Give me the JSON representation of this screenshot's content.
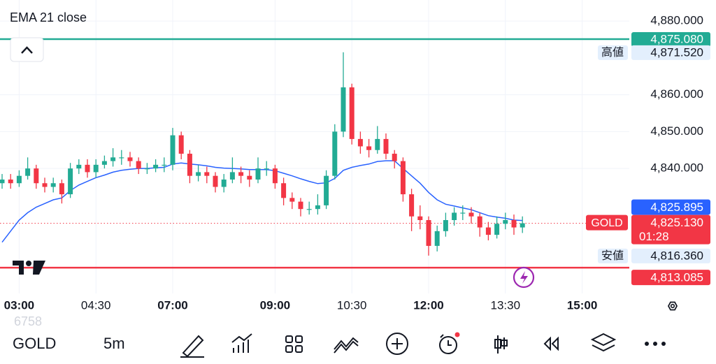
{
  "chart_data": {
    "type": "candlestick",
    "up_color": "#22ab94",
    "down_color": "#f23645",
    "categories": [
      null,
      null,
      "03:00",
      null,
      null,
      null,
      null,
      null,
      null,
      null,
      null,
      "04:30",
      null,
      null,
      null,
      null,
      null,
      null,
      null,
      null,
      "07:00",
      null,
      null,
      null,
      null,
      null,
      null,
      null,
      null,
      null,
      null,
      null,
      "09:00",
      null,
      null,
      null,
      null,
      null,
      null,
      null,
      null,
      "10:30",
      null,
      null,
      null,
      null,
      null,
      null,
      null,
      null,
      "12:00",
      null,
      null,
      null,
      null,
      null,
      null,
      null,
      null,
      "13:30",
      null,
      null,
      null,
      null,
      null,
      null,
      null,
      null,
      "15:00"
    ],
    "open": [
      4836,
      4837,
      4836,
      4838,
      4840,
      4836,
      4835,
      4836,
      4833,
      4840,
      4841,
      4839,
      4841,
      4842,
      4843,
      4843,
      4842,
      4840,
      4840,
      4841,
      4841,
      4849,
      4844,
      4838,
      4839,
      4838,
      4835,
      4837,
      4839,
      4838,
      4837,
      4840,
      4840,
      4836,
      4832,
      4831,
      4829,
      4829,
      4830,
      4838,
      4850,
      4862,
      4848,
      4846,
      4845,
      4848,
      4844,
      4842,
      4833,
      4827,
      4826,
      4819,
      4823,
      4826,
      4828,
      4828,
      4827,
      4824,
      4822,
      4825,
      4826,
      4824,
      null,
      null,
      null,
      null,
      null,
      null,
      null
    ],
    "high": [
      4838.5,
      4838.5,
      4839.5,
      4843,
      4841,
      4837.5,
      4837.5,
      4837,
      4841.5,
      4842.5,
      4842.5,
      4842.5,
      4843.5,
      4845.5,
      4845,
      4844.5,
      4843,
      4841.5,
      4842.5,
      4843,
      4851,
      4850,
      4845,
      4841,
      4840.5,
      4839,
      4838.5,
      4843,
      4840.5,
      4839.5,
      4843,
      4842,
      4841,
      4837.5,
      4833.5,
      4832,
      4831,
      4833,
      4839.5,
      4852,
      4871.52,
      4863,
      4850,
      4848,
      4851.5,
      4849.5,
      4845,
      4843,
      4834.5,
      4830,
      4827,
      4824.5,
      4828,
      4829.5,
      4830,
      4829.5,
      4828,
      4825.5,
      4827,
      4828,
      4827.5,
      4827,
      null,
      null,
      null,
      null,
      null,
      null,
      null
    ],
    "low": [
      4834.5,
      4834.5,
      4835,
      4837,
      4834.5,
      4833.5,
      4833.5,
      4830.5,
      4832,
      4838.5,
      4837.5,
      4837.5,
      4840,
      4840.5,
      4841,
      4840.5,
      4838.5,
      4838.5,
      4839,
      4839,
      4839.5,
      4842.5,
      4836,
      4836.5,
      4836,
      4833.5,
      4833.5,
      4836,
      4836,
      4835,
      4836,
      4838,
      4834.5,
      4830,
      4829,
      4827,
      4827.5,
      4827.5,
      4829,
      4837,
      4848.5,
      4846.5,
      4844,
      4843,
      4844,
      4842.5,
      4840,
      4831,
      4823,
      4823.5,
      4816.36,
      4817.5,
      4821.5,
      4824.5,
      4826,
      4825,
      4821.5,
      4820.5,
      4821,
      4823.5,
      4822,
      4822.5,
      null,
      null,
      null,
      null,
      null,
      null,
      null
    ],
    "close": [
      4837,
      4836,
      4838,
      4840,
      4836,
      4835,
      4836,
      4833,
      4840,
      4841,
      4839,
      4841,
      4842,
      4843,
      4843,
      4842,
      4840,
      4840,
      4841,
      4841,
      4849,
      4844,
      4838,
      4839,
      4838,
      4835,
      4837,
      4839,
      4838,
      4837,
      4840,
      4840,
      4836,
      4832,
      4831,
      4829,
      4829,
      4830,
      4838,
      4850,
      4862,
      4848,
      4846,
      4845,
      4848,
      4844,
      4842,
      4833,
      4827,
      4826,
      4819,
      4823,
      4826,
      4828,
      4828,
      4827,
      4824,
      4822,
      4825,
      4826,
      4824,
      4825.13,
      null,
      null,
      null,
      null,
      null,
      null,
      null
    ],
    "series": [
      {
        "name": "EMA 21 close",
        "color": "#2962ff",
        "values": [
          4820,
          4823,
          4826,
          4828,
          4829.5,
          4830.5,
          4831.5,
          4832,
          4834,
          4835.5,
          4836.5,
          4837.5,
          4838.2,
          4839,
          4839.5,
          4839.8,
          4840,
          4840,
          4840.2,
          4840.3,
          4841.2,
          4841.5,
          4841.2,
          4841,
          4840.7,
          4840.3,
          4840.1,
          4840,
          4839.9,
          4839.7,
          4839.7,
          4839.7,
          4839.4,
          4838.7,
          4838,
          4837.2,
          4836.5,
          4835.9,
          4836.1,
          4837.3,
          4839.5,
          4840.3,
          4840.8,
          4841.2,
          4841.9,
          4842.1,
          4842.1,
          4840,
          4838,
          4836,
          4833.5,
          4831.5,
          4830.3,
          4829.8,
          4829.3,
          4828.8,
          4828,
          4827.2,
          4826.8,
          4826.5,
          4826,
          4825.895,
          null,
          null,
          null,
          null,
          null,
          null,
          null
        ]
      }
    ],
    "ylim": [
      4806.1,
      4885.7
    ],
    "yticks": [
      {
        "value": 4880,
        "label": "4,880.000"
      },
      {
        "value": 4860,
        "label": "4,860.000"
      },
      {
        "value": 4850,
        "label": "4,850.000"
      },
      {
        "value": 4840,
        "label": "4,840.000"
      }
    ],
    "grid": true,
    "price_lines": [
      {
        "value": 4875.08,
        "label": "4,875.080",
        "color": "#22ab94"
      },
      {
        "value": 4813.085,
        "label": "4,813.085",
        "color": "#f23645"
      }
    ],
    "high_marker": {
      "name": "高値",
      "value": 4871.52,
      "label": "4,871.520"
    },
    "low_marker": {
      "name": "安値",
      "value": 4816.36,
      "label": "4,816.360"
    },
    "last_price": {
      "name": "GOLD",
      "value": 4825.13,
      "label": "4,825.130",
      "countdown": "01:28"
    },
    "ema_last": {
      "value": 4825.895,
      "label": "4,825.895"
    }
  },
  "background_text": "6758",
  "toolbar": {
    "symbol": "GOLD",
    "interval": "5m"
  }
}
